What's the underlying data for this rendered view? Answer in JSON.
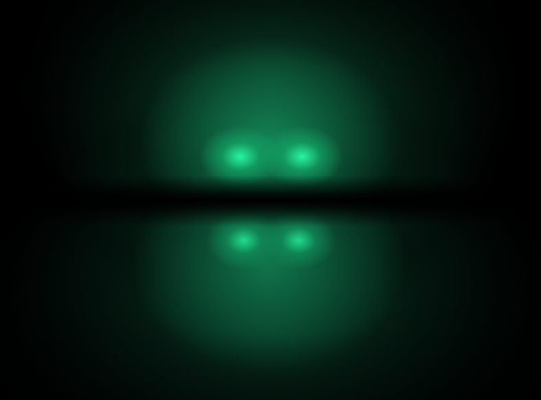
{
  "image": {
    "subject": "orbital-glow",
    "colors": {
      "background": "#000000",
      "glow_core": "#28F5A0",
      "glow_mid": "#14B46E",
      "glow_dim": "#0A462D"
    }
  }
}
